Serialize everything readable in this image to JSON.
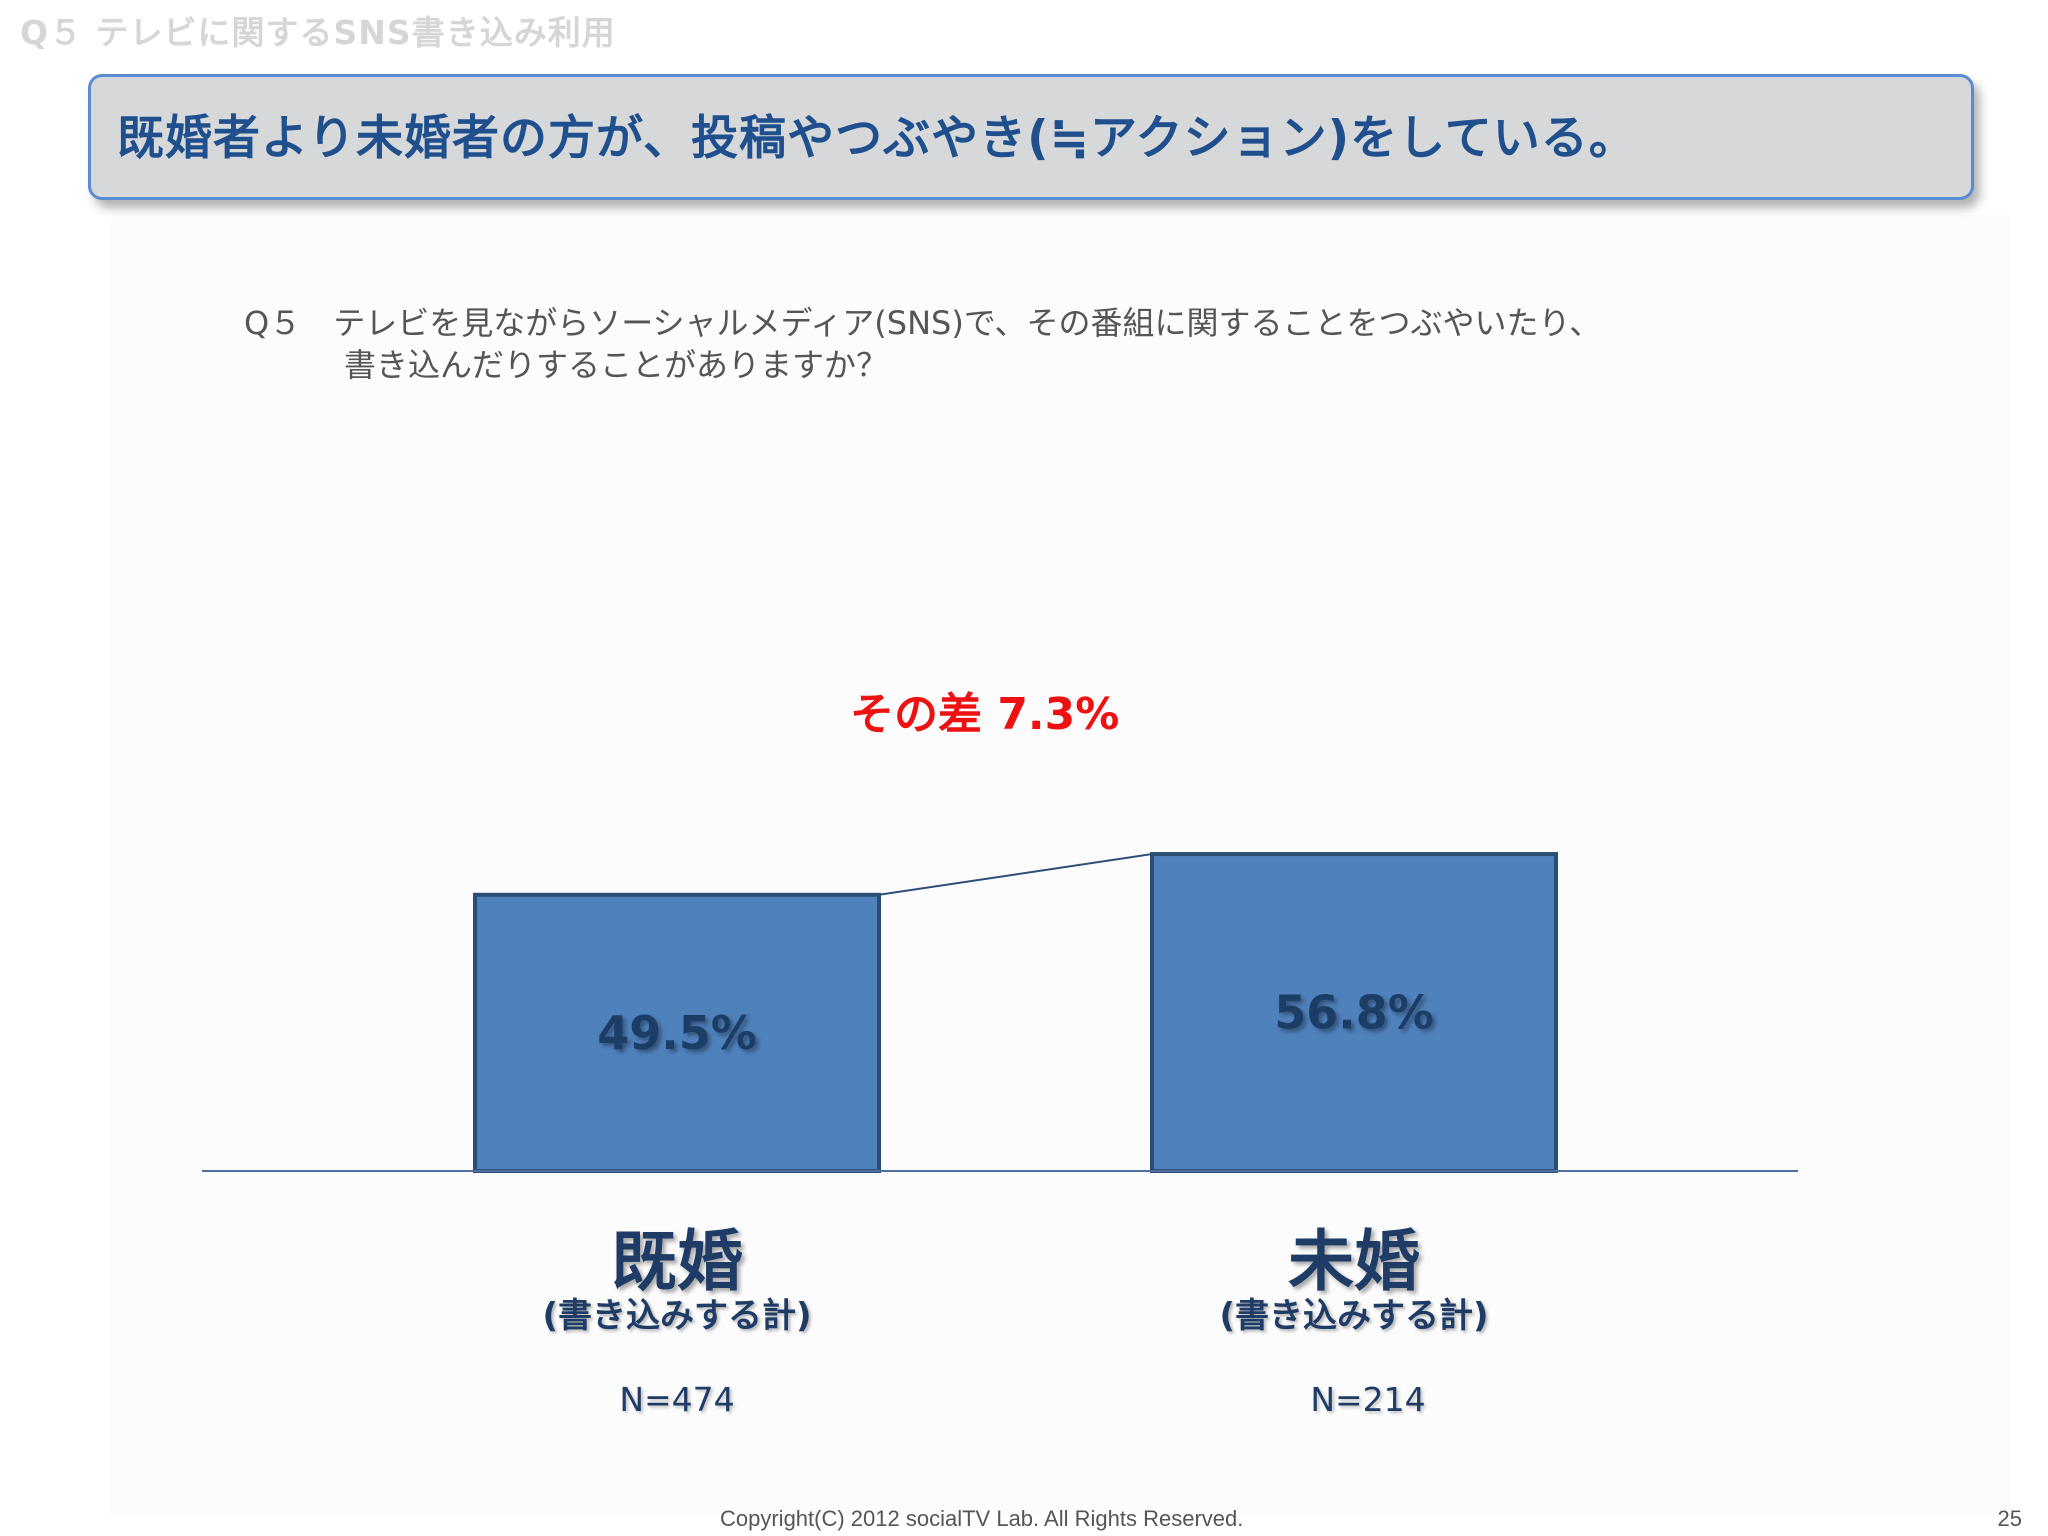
{
  "section_title": "Q５ テレビに関するSNS書き込み利用",
  "headline": "既婚者より未婚者の方が、投稿やつぶやき(≒アクション)をしている。",
  "question": {
    "line1": "Q５　テレビを見ながらソーシャルメディア(SNS)で、その番組に関することをつぶやいたり、",
    "line2": "書き込んだりすることがありますか？"
  },
  "diff_label": "その差 7.3%",
  "chart_data": {
    "type": "bar",
    "categories": [
      "既婚",
      "未婚"
    ],
    "sublabels": [
      "(書き込みする計)",
      "(書き込みする計)"
    ],
    "values": [
      49.5,
      56.8
    ],
    "value_labels": [
      "49.5%",
      "56.8%"
    ],
    "sample_sizes": [
      "N=474",
      "N=214"
    ],
    "annotation": "その差 7.3%",
    "ylim": [
      0,
      70
    ],
    "grid": false,
    "bar_color": "#4f81bd",
    "bar_border_color": "#2c4d75"
  },
  "footer": {
    "copyright": "Copyright(C) 2012 socialTV Lab. All Rights Reserved.",
    "page_number": "25"
  },
  "colors": {
    "headline_text": "#1f4f8d",
    "headline_bg": "#d7d8da",
    "headline_border": "#5b8bd0",
    "diff_text": "#ee1111",
    "label_text": "#1f3c66"
  }
}
